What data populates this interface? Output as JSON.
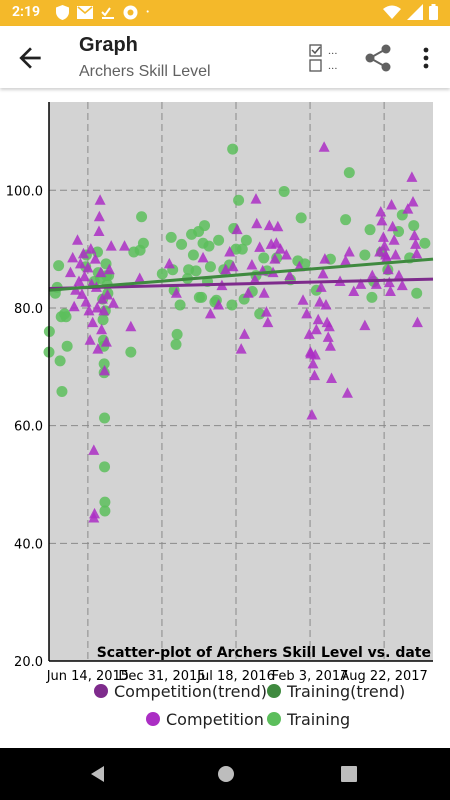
{
  "status_bar": {
    "time": "2:19",
    "dot": "•"
  },
  "app_bar": {
    "title": "Graph",
    "subtitle": "Archers Skill Level",
    "toggle_dots": "..."
  },
  "colors": {
    "status_bar": "#F4B92A",
    "competition": "#AB2EC4",
    "training": "#5CBE5C",
    "competition_trend": "#7E2B8C",
    "training_trend": "#3F8A3F",
    "plot_bg": "#D3D3D3"
  },
  "icons": {
    "status": [
      "shield-icon",
      "mail-icon",
      "checklist-icon",
      "chrome-icon",
      "wifi-icon",
      "signal-icon",
      "battery-icon"
    ],
    "app_bar": [
      "back-arrow-icon",
      "checkbox-toggle-icon",
      "share-icon",
      "more-vert-icon"
    ],
    "nav": [
      "back-triangle-icon",
      "home-circle-icon",
      "recents-square-icon"
    ]
  },
  "chart_data": {
    "type": "scatter",
    "title": "Scatter-plot of Archers Skill Level vs. date",
    "xlabel": "",
    "ylabel": "",
    "ylim": [
      20,
      115
    ],
    "xlim": [
      "2015-03-01",
      "2018-01-01"
    ],
    "x_ticks": [
      "Jun 14, 2015",
      "Dec 31, 2015",
      "Jul 18, 2016",
      "Feb 3, 2017",
      "Aug 22, 2017"
    ],
    "y_ticks": [
      "20.0",
      "40.0",
      "60.0",
      "80.0",
      "100.0"
    ],
    "grid": true,
    "legend": {
      "placement": "bottom",
      "entries": [
        {
          "name": "Competition(trend)",
          "color": "#7E2B8C"
        },
        {
          "name": "Training(trend)",
          "color": "#3F8A3F"
        },
        {
          "name": "Competition",
          "color": "#AB2EC4"
        },
        {
          "name": "Training",
          "color": "#5CBE5C"
        }
      ]
    },
    "trends": [
      {
        "name": "Competition(trend)",
        "x": [
          "2015-03-01",
          "2018-01-01"
        ],
        "y": [
          83.3,
          84.9
        ]
      },
      {
        "name": "Training(trend)",
        "x": [
          "2015-03-01",
          "2018-01-01"
        ],
        "y": [
          83.0,
          88.3
        ]
      }
    ],
    "series": [
      {
        "name": "Competition",
        "marker": "triangle",
        "points": [
          [
            "2015-04-28",
            86.0
          ],
          [
            "2015-05-04",
            88.5
          ],
          [
            "2015-05-08",
            80.2
          ],
          [
            "2015-05-12",
            83.0
          ],
          [
            "2015-05-17",
            91.5
          ],
          [
            "2015-05-21",
            84.5
          ],
          [
            "2015-05-25",
            87.5
          ],
          [
            "2015-05-29",
            82.3
          ],
          [
            "2015-06-02",
            89.2
          ],
          [
            "2015-06-05",
            85.3
          ],
          [
            "2015-06-09",
            81.0
          ],
          [
            "2015-06-14",
            86.8
          ],
          [
            "2015-06-17",
            79.5
          ],
          [
            "2015-06-20",
            74.5
          ],
          [
            "2015-06-22",
            90.0
          ],
          [
            "2015-06-24",
            84.0
          ],
          [
            "2015-06-27",
            77.5
          ],
          [
            "2015-06-30",
            55.8
          ],
          [
            "2015-06-30",
            44.3
          ],
          [
            "2015-07-02",
            45.0
          ],
          [
            "2015-07-04",
            88.3
          ],
          [
            "2015-07-07",
            83.5
          ],
          [
            "2015-07-09",
            80.0
          ],
          [
            "2015-07-11",
            73.0
          ],
          [
            "2015-07-14",
            93.0
          ],
          [
            "2015-07-15",
            95.5
          ],
          [
            "2015-07-17",
            98.3
          ],
          [
            "2015-07-19",
            86.0
          ],
          [
            "2015-07-21",
            76.3
          ],
          [
            "2015-07-23",
            81.5
          ],
          [
            "2015-07-27",
            79.5
          ],
          [
            "2015-07-29",
            69.3
          ],
          [
            "2015-08-03",
            74.2
          ],
          [
            "2015-08-06",
            82.2
          ],
          [
            "2015-08-11",
            86.5
          ],
          [
            "2015-08-16",
            90.5
          ],
          [
            "2015-08-22",
            80.8
          ],
          [
            "2015-09-21",
            90.5
          ],
          [
            "2015-10-08",
            76.8
          ],
          [
            "2015-11-01",
            85.0
          ],
          [
            "2016-01-20",
            87.5
          ],
          [
            "2016-02-08",
            82.5
          ],
          [
            "2016-04-20",
            88.5
          ],
          [
            "2016-05-10",
            79.0
          ],
          [
            "2016-06-01",
            80.5
          ],
          [
            "2016-06-10",
            83.8
          ],
          [
            "2016-06-20",
            86.5
          ],
          [
            "2016-07-01",
            89.5
          ],
          [
            "2016-07-10",
            87.0
          ],
          [
            "2016-07-21",
            93.3
          ],
          [
            "2016-08-01",
            73.0
          ],
          [
            "2016-08-10",
            75.5
          ],
          [
            "2016-08-20",
            82.5
          ],
          [
            "2016-08-30",
            87.3
          ],
          [
            "2016-09-07",
            84.8
          ],
          [
            "2016-09-10",
            98.5
          ],
          [
            "2016-09-12",
            94.3
          ],
          [
            "2016-09-20",
            90.3
          ],
          [
            "2016-09-28",
            86.3
          ],
          [
            "2016-10-02",
            82.5
          ],
          [
            "2016-10-08",
            79.3
          ],
          [
            "2016-10-12",
            77.5
          ],
          [
            "2016-10-16",
            94.0
          ],
          [
            "2016-10-21",
            90.8
          ],
          [
            "2016-10-26",
            86.0
          ],
          [
            "2016-10-31",
            88.3
          ],
          [
            "2016-11-04",
            91.0
          ],
          [
            "2016-11-08",
            93.8
          ],
          [
            "2016-11-15",
            90.0
          ],
          [
            "2016-12-01",
            89.0
          ],
          [
            "2016-12-10",
            85.5
          ],
          [
            "2017-01-05",
            87.0
          ],
          [
            "2017-01-15",
            81.3
          ],
          [
            "2017-01-25",
            79.0
          ],
          [
            "2017-02-01",
            75.5
          ],
          [
            "2017-02-04",
            72.5
          ],
          [
            "2017-02-05",
            72.2
          ],
          [
            "2017-02-08",
            61.8
          ],
          [
            "2017-02-11",
            70.5
          ],
          [
            "2017-02-15",
            68.5
          ],
          [
            "2017-02-17",
            72.0
          ],
          [
            "2017-02-20",
            76.3
          ],
          [
            "2017-02-25",
            78.0
          ],
          [
            "2017-03-01",
            81.0
          ],
          [
            "2017-03-05",
            83.5
          ],
          [
            "2017-03-10",
            85.8
          ],
          [
            "2017-03-13",
            107.3
          ],
          [
            "2017-03-15",
            88.3
          ],
          [
            "2017-03-18",
            80.5
          ],
          [
            "2017-03-21",
            77.5
          ],
          [
            "2017-03-24",
            75.0
          ],
          [
            "2017-03-27",
            76.8
          ],
          [
            "2017-03-30",
            73.5
          ],
          [
            "2017-04-02",
            68.0
          ],
          [
            "2017-04-25",
            84.5
          ],
          [
            "2017-05-10",
            88.0
          ],
          [
            "2017-05-15",
            65.5
          ],
          [
            "2017-05-20",
            89.5
          ],
          [
            "2017-06-01",
            82.8
          ],
          [
            "2017-06-20",
            84.0
          ],
          [
            "2017-07-01",
            77.0
          ],
          [
            "2017-07-21",
            85.5
          ],
          [
            "2017-08-01",
            84.0
          ],
          [
            "2017-08-10",
            89.5
          ],
          [
            "2017-08-13",
            96.3
          ],
          [
            "2017-08-16",
            94.8
          ],
          [
            "2017-08-20",
            92.0
          ],
          [
            "2017-08-23",
            90.5
          ],
          [
            "2017-08-26",
            89.0
          ],
          [
            "2017-08-29",
            88.5
          ],
          [
            "2017-09-02",
            86.5
          ],
          [
            "2017-09-05",
            84.3
          ],
          [
            "2017-09-08",
            82.8
          ],
          [
            "2017-09-11",
            97.5
          ],
          [
            "2017-09-14",
            93.8
          ],
          [
            "2017-09-18",
            91.5
          ],
          [
            "2017-09-22",
            89.0
          ],
          [
            "2017-10-01",
            85.5
          ],
          [
            "2017-10-10",
            83.8
          ],
          [
            "2017-10-25",
            96.8
          ],
          [
            "2017-11-05",
            102.2
          ],
          [
            "2017-11-08",
            98.0
          ],
          [
            "2017-11-12",
            92.3
          ],
          [
            "2017-11-15",
            90.8
          ],
          [
            "2017-11-18",
            89.2
          ],
          [
            "2017-11-20",
            77.5
          ]
        ]
      },
      {
        "name": "Training",
        "marker": "circle",
        "points": [
          [
            "2015-03-01",
            72.5
          ],
          [
            "2015-03-02",
            76.0
          ],
          [
            "2015-03-18",
            82.5
          ],
          [
            "2015-03-23",
            83.5
          ],
          [
            "2015-03-27",
            87.2
          ],
          [
            "2015-03-31",
            71.0
          ],
          [
            "2015-04-03",
            78.5
          ],
          [
            "2015-04-05",
            65.8
          ],
          [
            "2015-04-12",
            79.0
          ],
          [
            "2015-04-16",
            78.5
          ],
          [
            "2015-04-19",
            73.5
          ],
          [
            "2015-06-08",
            87.0
          ],
          [
            "2015-06-10",
            89.0
          ],
          [
            "2015-07-01",
            84.5
          ],
          [
            "2015-07-10",
            89.5
          ],
          [
            "2015-07-12",
            86.0
          ],
          [
            "2015-07-18",
            85.0
          ],
          [
            "2015-07-24",
            81.5
          ],
          [
            "2015-07-25",
            78.0
          ],
          [
            "2015-07-26",
            74.5
          ],
          [
            "2015-07-27",
            73.5
          ],
          [
            "2015-07-28",
            70.5
          ],
          [
            "2015-07-28",
            69.0
          ],
          [
            "2015-07-29",
            61.3
          ],
          [
            "2015-07-29",
            53.0
          ],
          [
            "2015-07-30",
            47.0
          ],
          [
            "2015-07-30",
            45.5
          ],
          [
            "2015-07-31",
            79.5
          ],
          [
            "2015-08-02",
            87.5
          ],
          [
            "2015-08-03",
            85.5
          ],
          [
            "2015-08-05",
            84.0
          ],
          [
            "2015-08-07",
            82.5
          ],
          [
            "2015-08-09",
            85.5
          ],
          [
            "2015-10-08",
            72.5
          ],
          [
            "2015-10-16",
            89.5
          ],
          [
            "2015-11-02",
            89.8
          ],
          [
            "2015-11-06",
            95.5
          ],
          [
            "2015-11-11",
            91.0
          ],
          [
            "2016-01-01",
            85.8
          ],
          [
            "2016-01-25",
            92.0
          ],
          [
            "2016-01-29",
            86.5
          ],
          [
            "2016-02-02",
            83.0
          ],
          [
            "2016-02-07",
            73.8
          ],
          [
            "2016-02-10",
            75.5
          ],
          [
            "2016-02-18",
            80.5
          ],
          [
            "2016-02-22",
            90.8
          ],
          [
            "2016-03-09",
            85.0
          ],
          [
            "2016-03-12",
            86.5
          ],
          [
            "2016-03-20",
            92.5
          ],
          [
            "2016-03-25",
            89.0
          ],
          [
            "2016-04-01",
            86.3
          ],
          [
            "2016-04-08",
            93.0
          ],
          [
            "2016-04-10",
            81.8
          ],
          [
            "2016-04-16",
            81.8
          ],
          [
            "2016-04-20",
            91.0
          ],
          [
            "2016-04-24",
            94.0
          ],
          [
            "2016-05-02",
            84.5
          ],
          [
            "2016-05-06",
            90.5
          ],
          [
            "2016-05-10",
            87.0
          ],
          [
            "2016-05-22",
            81.0
          ],
          [
            "2016-05-26",
            81.3
          ],
          [
            "2016-06-01",
            91.5
          ],
          [
            "2016-06-15",
            86.5
          ],
          [
            "2016-06-30",
            87.3
          ],
          [
            "2016-07-07",
            80.5
          ],
          [
            "2016-07-09",
            107.0
          ],
          [
            "2016-07-12",
            93.5
          ],
          [
            "2016-07-18",
            90.0
          ],
          [
            "2016-07-25",
            98.3
          ],
          [
            "2016-08-04",
            90.0
          ],
          [
            "2016-08-09",
            81.5
          ],
          [
            "2016-08-15",
            91.5
          ],
          [
            "2016-08-31",
            82.8
          ],
          [
            "2016-09-10",
            85.5
          ],
          [
            "2016-09-20",
            79.0
          ],
          [
            "2016-10-01",
            88.5
          ],
          [
            "2016-10-10",
            86.3
          ],
          [
            "2016-11-05",
            88.5
          ],
          [
            "2016-11-25",
            99.8
          ],
          [
            "2016-12-12",
            84.8
          ],
          [
            "2017-01-01",
            88.0
          ],
          [
            "2017-01-10",
            95.3
          ],
          [
            "2017-01-20",
            87.5
          ],
          [
            "2017-02-20",
            83.0
          ],
          [
            "2017-03-30",
            88.3
          ],
          [
            "2017-05-10",
            95.0
          ],
          [
            "2017-05-20",
            103.0
          ],
          [
            "2017-07-01",
            89.0
          ],
          [
            "2017-07-15",
            93.3
          ],
          [
            "2017-07-20",
            81.8
          ],
          [
            "2017-07-25",
            84.5
          ],
          [
            "2017-08-15",
            89.5
          ],
          [
            "2017-09-01",
            86.5
          ],
          [
            "2017-09-30",
            93.0
          ],
          [
            "2017-10-10",
            95.8
          ],
          [
            "2017-10-30",
            88.5
          ],
          [
            "2017-11-10",
            94.0
          ],
          [
            "2017-11-18",
            82.5
          ],
          [
            "2017-12-10",
            91.0
          ]
        ]
      }
    ]
  }
}
